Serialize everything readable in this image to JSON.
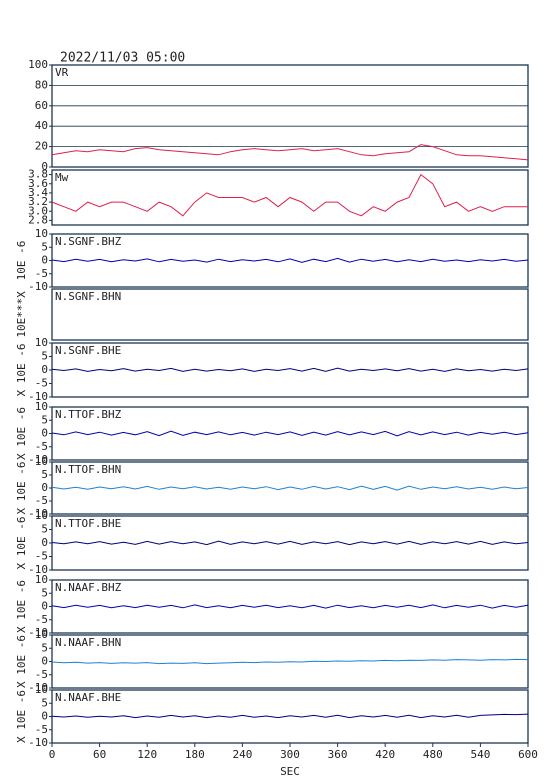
{
  "chart_data": {
    "type": "line",
    "title": "2022/11/03 05:00",
    "xlabel": "SEC",
    "xlim": [
      0,
      600
    ],
    "xticks": [
      0,
      60,
      120,
      180,
      240,
      300,
      360,
      420,
      480,
      540,
      600
    ],
    "x": [
      0,
      15,
      30,
      45,
      60,
      75,
      90,
      105,
      120,
      135,
      150,
      165,
      180,
      195,
      210,
      225,
      240,
      255,
      270,
      285,
      300,
      315,
      330,
      345,
      360,
      375,
      390,
      405,
      420,
      435,
      450,
      465,
      480,
      495,
      510,
      525,
      540,
      555,
      570,
      585,
      600
    ],
    "panels": [
      {
        "label": "VR",
        "ylim": [
          0,
          100
        ],
        "yticks": [
          0,
          20,
          40,
          60,
          80,
          100
        ],
        "grid": true,
        "color": "#e0204a",
        "values": [
          12,
          14,
          16,
          15,
          17,
          16,
          15,
          18,
          19,
          17,
          16,
          15,
          14,
          13,
          12,
          15,
          17,
          18,
          17,
          16,
          17,
          18,
          16,
          17,
          18,
          15,
          12,
          11,
          13,
          14,
          15,
          22,
          20,
          16,
          12,
          11,
          11,
          10,
          9,
          8,
          7
        ]
      },
      {
        "label": "Mw",
        "ylim": [
          2.7,
          3.9
        ],
        "yticks": [
          {
            "value": 2.8,
            "label": "2.8"
          },
          {
            "value": 3,
            "label": "3.0"
          },
          {
            "value": 3.2,
            "label": "3.2"
          },
          {
            "value": 3.4,
            "label": "3.4"
          },
          {
            "value": 3.6,
            "label": "3.6"
          },
          {
            "value": 3.8,
            "label": "3.8"
          }
        ],
        "grid": false,
        "color": "#e0204a",
        "values": [
          3.2,
          3.1,
          3.0,
          3.2,
          3.1,
          3.2,
          3.2,
          3.1,
          3.0,
          3.2,
          3.1,
          2.9,
          3.2,
          3.4,
          3.3,
          3.3,
          3.3,
          3.2,
          3.3,
          3.1,
          3.3,
          3.2,
          3.0,
          3.2,
          3.2,
          3.0,
          2.9,
          3.1,
          3.0,
          3.2,
          3.3,
          3.8,
          3.6,
          3.1,
          3.2,
          3.0,
          3.1,
          3.0,
          3.1,
          3.1,
          3.1
        ]
      },
      {
        "label": "N.SGNF.BHZ",
        "ylabel": "10E -6",
        "ylim": [
          -10,
          10
        ],
        "yticks": [
          -10,
          -5,
          0,
          5,
          10
        ],
        "grid": false,
        "color": "#0000b0",
        "values": [
          0.2,
          -0.4,
          0.5,
          -0.3,
          0.4,
          -0.5,
          0.3,
          -0.2,
          0.6,
          -0.5,
          0.4,
          -0.3,
          0.2,
          -0.6,
          0.5,
          -0.4,
          0.3,
          -0.2,
          0.4,
          -0.5,
          0.6,
          -0.7,
          0.5,
          -0.4,
          0.8,
          -0.6,
          0.5,
          -0.3,
          0.4,
          -0.5,
          0.3,
          -0.4,
          0.5,
          -0.3,
          0.2,
          -0.4,
          0.3,
          -0.2,
          0.4,
          -0.3,
          0.2
        ]
      },
      {
        "label": "N.SGNF.BHN",
        "ylabel": "10E***X",
        "grid": false,
        "color": "#2080d0",
        "values": []
      },
      {
        "label": "N.SGNF.BHE",
        "ylabel": "X 10E -6",
        "ylim": [
          -10,
          10
        ],
        "yticks": [
          -10,
          -5,
          0,
          5,
          10
        ],
        "grid": false,
        "color": "#000080",
        "values": [
          0.3,
          -0.2,
          0.4,
          -0.5,
          0.2,
          -0.3,
          0.5,
          -0.4,
          0.3,
          -0.2,
          0.6,
          -0.5,
          0.3,
          -0.4,
          0.2,
          -0.3,
          0.4,
          -0.5,
          0.3,
          -0.2,
          0.5,
          -0.4,
          0.6,
          -0.5,
          0.7,
          -0.4,
          0.3,
          -0.2,
          0.4,
          -0.3,
          0.5,
          -0.4,
          0.3,
          -0.5,
          0.4,
          -0.3,
          0.2,
          -0.4,
          0.3,
          -0.2,
          0.4
        ]
      },
      {
        "label": "N.TTOF.BHZ",
        "ylabel": "X 10E -6",
        "ylim": [
          -10,
          10
        ],
        "yticks": [
          -10,
          -5,
          0,
          5,
          10
        ],
        "grid": false,
        "color": "#0000b0",
        "values": [
          0.2,
          -0.5,
          0.6,
          -0.4,
          0.5,
          -0.6,
          0.4,
          -0.5,
          0.7,
          -0.8,
          0.9,
          -0.7,
          0.5,
          -0.4,
          0.6,
          -0.5,
          0.4,
          -0.6,
          0.5,
          -0.4,
          0.6,
          -0.7,
          0.5,
          -0.6,
          0.7,
          -0.5,
          0.6,
          -0.4,
          0.8,
          -0.9,
          0.7,
          -0.5,
          0.6,
          -0.4,
          0.5,
          -0.6,
          0.4,
          -0.3,
          0.5,
          -0.4,
          0.3
        ]
      },
      {
        "label": "N.TTOF.BHN",
        "ylabel": "X 10E -6",
        "ylim": [
          -10,
          10
        ],
        "yticks": [
          -10,
          -5,
          0,
          5,
          10
        ],
        "grid": false,
        "color": "#2080d0",
        "values": [
          0.3,
          -0.4,
          0.3,
          -0.5,
          0.4,
          -0.3,
          0.5,
          -0.4,
          0.6,
          -0.5,
          0.4,
          -0.3,
          0.5,
          -0.4,
          0.3,
          -0.5,
          0.4,
          -0.3,
          0.5,
          -0.6,
          0.4,
          -0.5,
          0.6,
          -0.4,
          0.5,
          -0.6,
          0.7,
          -0.5,
          0.6,
          -0.8,
          0.7,
          -0.5,
          0.4,
          -0.3,
          0.5,
          -0.4,
          0.3,
          -0.5,
          0.4,
          -0.3,
          0.2
        ]
      },
      {
        "label": "N.TTOF.BHE",
        "ylabel": "X 10E -6",
        "ylim": [
          -10,
          10
        ],
        "yticks": [
          -10,
          -5,
          0,
          5,
          10
        ],
        "grid": false,
        "color": "#000080",
        "values": [
          0.2,
          -0.3,
          0.4,
          -0.3,
          0.5,
          -0.4,
          0.3,
          -0.5,
          0.6,
          -0.4,
          0.5,
          -0.3,
          0.4,
          -0.6,
          0.7,
          -0.5,
          0.4,
          -0.3,
          0.5,
          -0.4,
          0.6,
          -0.5,
          0.4,
          -0.3,
          0.5,
          -0.6,
          0.4,
          -0.3,
          0.5,
          -0.4,
          0.6,
          -0.5,
          0.4,
          -0.3,
          0.5,
          -0.4,
          0.6,
          -0.5,
          0.4,
          -0.3,
          0.2
        ]
      },
      {
        "label": "N.NAAF.BHZ",
        "ylabel": "X 10E -6",
        "ylim": [
          -10,
          10
        ],
        "yticks": [
          -10,
          -5,
          0,
          5,
          10
        ],
        "grid": false,
        "color": "#0000b0",
        "values": [
          0.3,
          -0.4,
          0.5,
          -0.3,
          0.4,
          -0.5,
          0.3,
          -0.4,
          0.5,
          -0.3,
          0.4,
          -0.5,
          0.6,
          -0.4,
          0.3,
          -0.5,
          0.4,
          -0.3,
          0.5,
          -0.4,
          0.3,
          -0.5,
          0.4,
          -0.6,
          0.5,
          -0.4,
          0.3,
          -0.5,
          0.4,
          -0.3,
          0.5,
          -0.4,
          0.6,
          -0.5,
          0.4,
          -0.3,
          0.5,
          -0.6,
          0.4,
          -0.3,
          0.5
        ]
      },
      {
        "label": "N.NAAF.BHN",
        "ylabel": "X 10E -6",
        "ylim": [
          -10,
          10
        ],
        "yticks": [
          -10,
          -5,
          0,
          5,
          10
        ],
        "grid": false,
        "color": "#2080d0",
        "values": [
          -0.2,
          -0.5,
          -0.3,
          -0.6,
          -0.4,
          -0.7,
          -0.5,
          -0.6,
          -0.4,
          -0.8,
          -0.6,
          -0.7,
          -0.5,
          -0.8,
          -0.6,
          -0.5,
          -0.3,
          -0.4,
          -0.2,
          -0.3,
          -0.1,
          -0.2,
          0.1,
          0,
          0.2,
          0.1,
          0.3,
          0.2,
          0.4,
          0.3,
          0.5,
          0.4,
          0.6,
          0.5,
          0.7,
          0.6,
          0.5,
          0.7,
          0.6,
          0.8,
          0.7
        ]
      },
      {
        "label": "N.NAAF.BHE",
        "ylabel": "X 10E -6",
        "ylim": [
          -10,
          10
        ],
        "yticks": [
          -10,
          -5,
          0,
          5,
          10
        ],
        "grid": false,
        "color": "#000080",
        "values": [
          0.1,
          -0.2,
          0.2,
          -0.3,
          0.1,
          -0.2,
          0.3,
          -0.4,
          0.2,
          -0.3,
          0.4,
          -0.2,
          0.3,
          -0.4,
          0.2,
          -0.3,
          0.4,
          -0.3,
          0.2,
          -0.4,
          0.3,
          -0.2,
          0.4,
          -0.3,
          0.5,
          -0.4,
          0.3,
          -0.2,
          0.4,
          -0.3,
          0.5,
          -0.4,
          0.3,
          -0.2,
          0.5,
          -0.3,
          0.4,
          0.6,
          0.8,
          0.7,
          0.9
        ]
      }
    ]
  }
}
